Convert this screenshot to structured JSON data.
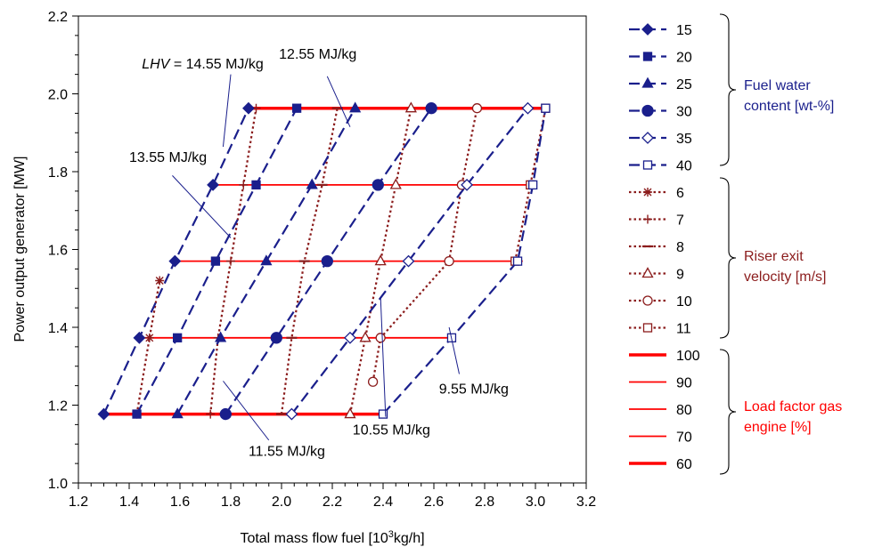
{
  "chart_data": {
    "type": "line",
    "xlabel": "Total mass flow fuel [10³kg/h]",
    "xlabel_parts": {
      "pre": "Total mass flow fuel [10",
      "sup": "3",
      "post": "kg/h]"
    },
    "ylabel": "Power output generator [MW]",
    "xlim": [
      1.2,
      3.2
    ],
    "ylim": [
      1.0,
      2.2
    ],
    "xticks": [
      "1.2",
      "1.4",
      "1.6",
      "1.8",
      "2.0",
      "2.2",
      "2.4",
      "2.6",
      "2.8",
      "3.0",
      "3.2"
    ],
    "yticks": [
      "1.0",
      "1.2",
      "1.4",
      "1.6",
      "1.8",
      "2.0",
      "2.2"
    ],
    "grid": false,
    "legend_position": "right",
    "colors": {
      "water": "#1a1f8c",
      "velocity": "#8b1c1c",
      "load": "#ff0000"
    },
    "load_lines": [
      {
        "name": "100",
        "y": 1.963,
        "x": [
          1.87,
          3.04
        ],
        "thick": true
      },
      {
        "name": "90",
        "y": 1.766,
        "x": [
          1.73,
          2.99
        ],
        "thick": false
      },
      {
        "name": "80",
        "y": 1.57,
        "x": [
          1.58,
          2.95
        ],
        "thick": false
      },
      {
        "name": "70",
        "y": 1.373,
        "x": [
          1.44,
          2.67
        ],
        "thick": false
      },
      {
        "name": "60",
        "y": 1.177,
        "x": [
          1.3,
          2.4
        ],
        "thick": true
      }
    ],
    "water_series": [
      {
        "name": "15",
        "marker": "diamond",
        "fill": true,
        "points": [
          [
            1.3,
            1.177
          ],
          [
            1.44,
            1.373
          ],
          [
            1.58,
            1.57
          ],
          [
            1.73,
            1.766
          ],
          [
            1.87,
            1.963
          ]
        ]
      },
      {
        "name": "20",
        "marker": "square",
        "fill": true,
        "points": [
          [
            1.43,
            1.177
          ],
          [
            1.59,
            1.373
          ],
          [
            1.74,
            1.57
          ],
          [
            1.9,
            1.766
          ],
          [
            2.06,
            1.963
          ]
        ]
      },
      {
        "name": "25",
        "marker": "triangle",
        "fill": true,
        "points": [
          [
            1.59,
            1.177
          ],
          [
            1.76,
            1.373
          ],
          [
            1.94,
            1.57
          ],
          [
            2.12,
            1.766
          ],
          [
            2.29,
            1.963
          ]
        ]
      },
      {
        "name": "30",
        "marker": "circle",
        "fill": true,
        "points": [
          [
            1.78,
            1.177
          ],
          [
            1.98,
            1.373
          ],
          [
            2.18,
            1.57
          ],
          [
            2.38,
            1.766
          ],
          [
            2.59,
            1.963
          ]
        ]
      },
      {
        "name": "35",
        "marker": "diamond",
        "fill": false,
        "points": [
          [
            2.04,
            1.177
          ],
          [
            2.27,
            1.373
          ],
          [
            2.5,
            1.57
          ],
          [
            2.73,
            1.766
          ],
          [
            2.97,
            1.963
          ]
        ]
      },
      {
        "name": "40",
        "marker": "square",
        "fill": false,
        "points": [
          [
            2.4,
            1.177
          ],
          [
            2.67,
            1.373
          ],
          [
            2.93,
            1.57
          ],
          [
            2.99,
            1.766
          ],
          [
            3.04,
            1.963
          ]
        ]
      }
    ],
    "velocity_series": [
      {
        "name": "6",
        "marker": "star",
        "points": [
          [
            1.43,
            1.177
          ],
          [
            1.48,
            1.373
          ],
          [
            1.52,
            1.52
          ]
        ]
      },
      {
        "name": "7",
        "marker": "plus",
        "points": [
          [
            1.72,
            1.177
          ],
          [
            1.75,
            1.373
          ],
          [
            1.8,
            1.57
          ],
          [
            1.85,
            1.766
          ],
          [
            1.9,
            1.963
          ]
        ]
      },
      {
        "name": "8",
        "marker": "dash",
        "points": [
          [
            2.0,
            1.177
          ],
          [
            2.04,
            1.373
          ],
          [
            2.09,
            1.57
          ],
          [
            2.16,
            1.766
          ],
          [
            2.22,
            1.963
          ]
        ]
      },
      {
        "name": "9",
        "marker": "triangle",
        "points": [
          [
            2.27,
            1.177
          ],
          [
            2.33,
            1.373
          ],
          [
            2.39,
            1.57
          ],
          [
            2.45,
            1.766
          ],
          [
            2.51,
            1.963
          ]
        ]
      },
      {
        "name": "10",
        "marker": "circle",
        "points": [
          [
            2.36,
            1.26
          ],
          [
            2.39,
            1.373
          ],
          [
            2.66,
            1.57
          ],
          [
            2.71,
            1.766
          ],
          [
            2.77,
            1.963
          ]
        ]
      },
      {
        "name": "11",
        "marker": "square",
        "points": [
          [
            2.92,
            1.57
          ],
          [
            2.98,
            1.766
          ],
          [
            3.04,
            1.963
          ]
        ]
      }
    ],
    "lhv_prefix": "LHV",
    "annotations": [
      {
        "text": "= 14.55 MJ/kg",
        "x": 1.45,
        "y": 2.065,
        "line": [
          [
            1.8,
            2.05
          ],
          [
            1.77,
            1.864
          ]
        ]
      },
      {
        "text": "12.55 MJ/kg",
        "x": 1.99,
        "y": 2.09,
        "line": [
          [
            2.18,
            2.045
          ],
          [
            2.27,
            1.915
          ]
        ]
      },
      {
        "text": "13.55 MJ/kg",
        "x": 1.4,
        "y": 1.825,
        "line": [
          [
            1.57,
            1.79
          ],
          [
            1.8,
            1.63
          ]
        ]
      },
      {
        "text": "11.55 MJ/kg",
        "x": 1.87,
        "y": 1.07,
        "line": [
          [
            1.95,
            1.11
          ],
          [
            1.77,
            1.262
          ]
        ]
      },
      {
        "text": "10.55 MJ/kg",
        "x": 2.28,
        "y": 1.125,
        "line": [
          [
            2.41,
            1.17
          ],
          [
            2.39,
            1.478
          ]
        ]
      },
      {
        "text": "9.55 MJ/kg",
        "x": 2.62,
        "y": 1.23,
        "line": [
          [
            2.7,
            1.28
          ],
          [
            2.66,
            1.4
          ]
        ]
      }
    ],
    "legend": {
      "groups": [
        {
          "title_lines": [
            "Fuel water",
            "content [wt-%]"
          ],
          "color": "#1a1f8c"
        },
        {
          "title_lines": [
            "Riser exit",
            "velocity [m/s]"
          ],
          "color": "#8b1c1c"
        },
        {
          "title_lines": [
            "Load factor gas",
            "engine [%]"
          ],
          "color": "#ff0000"
        }
      ]
    }
  }
}
